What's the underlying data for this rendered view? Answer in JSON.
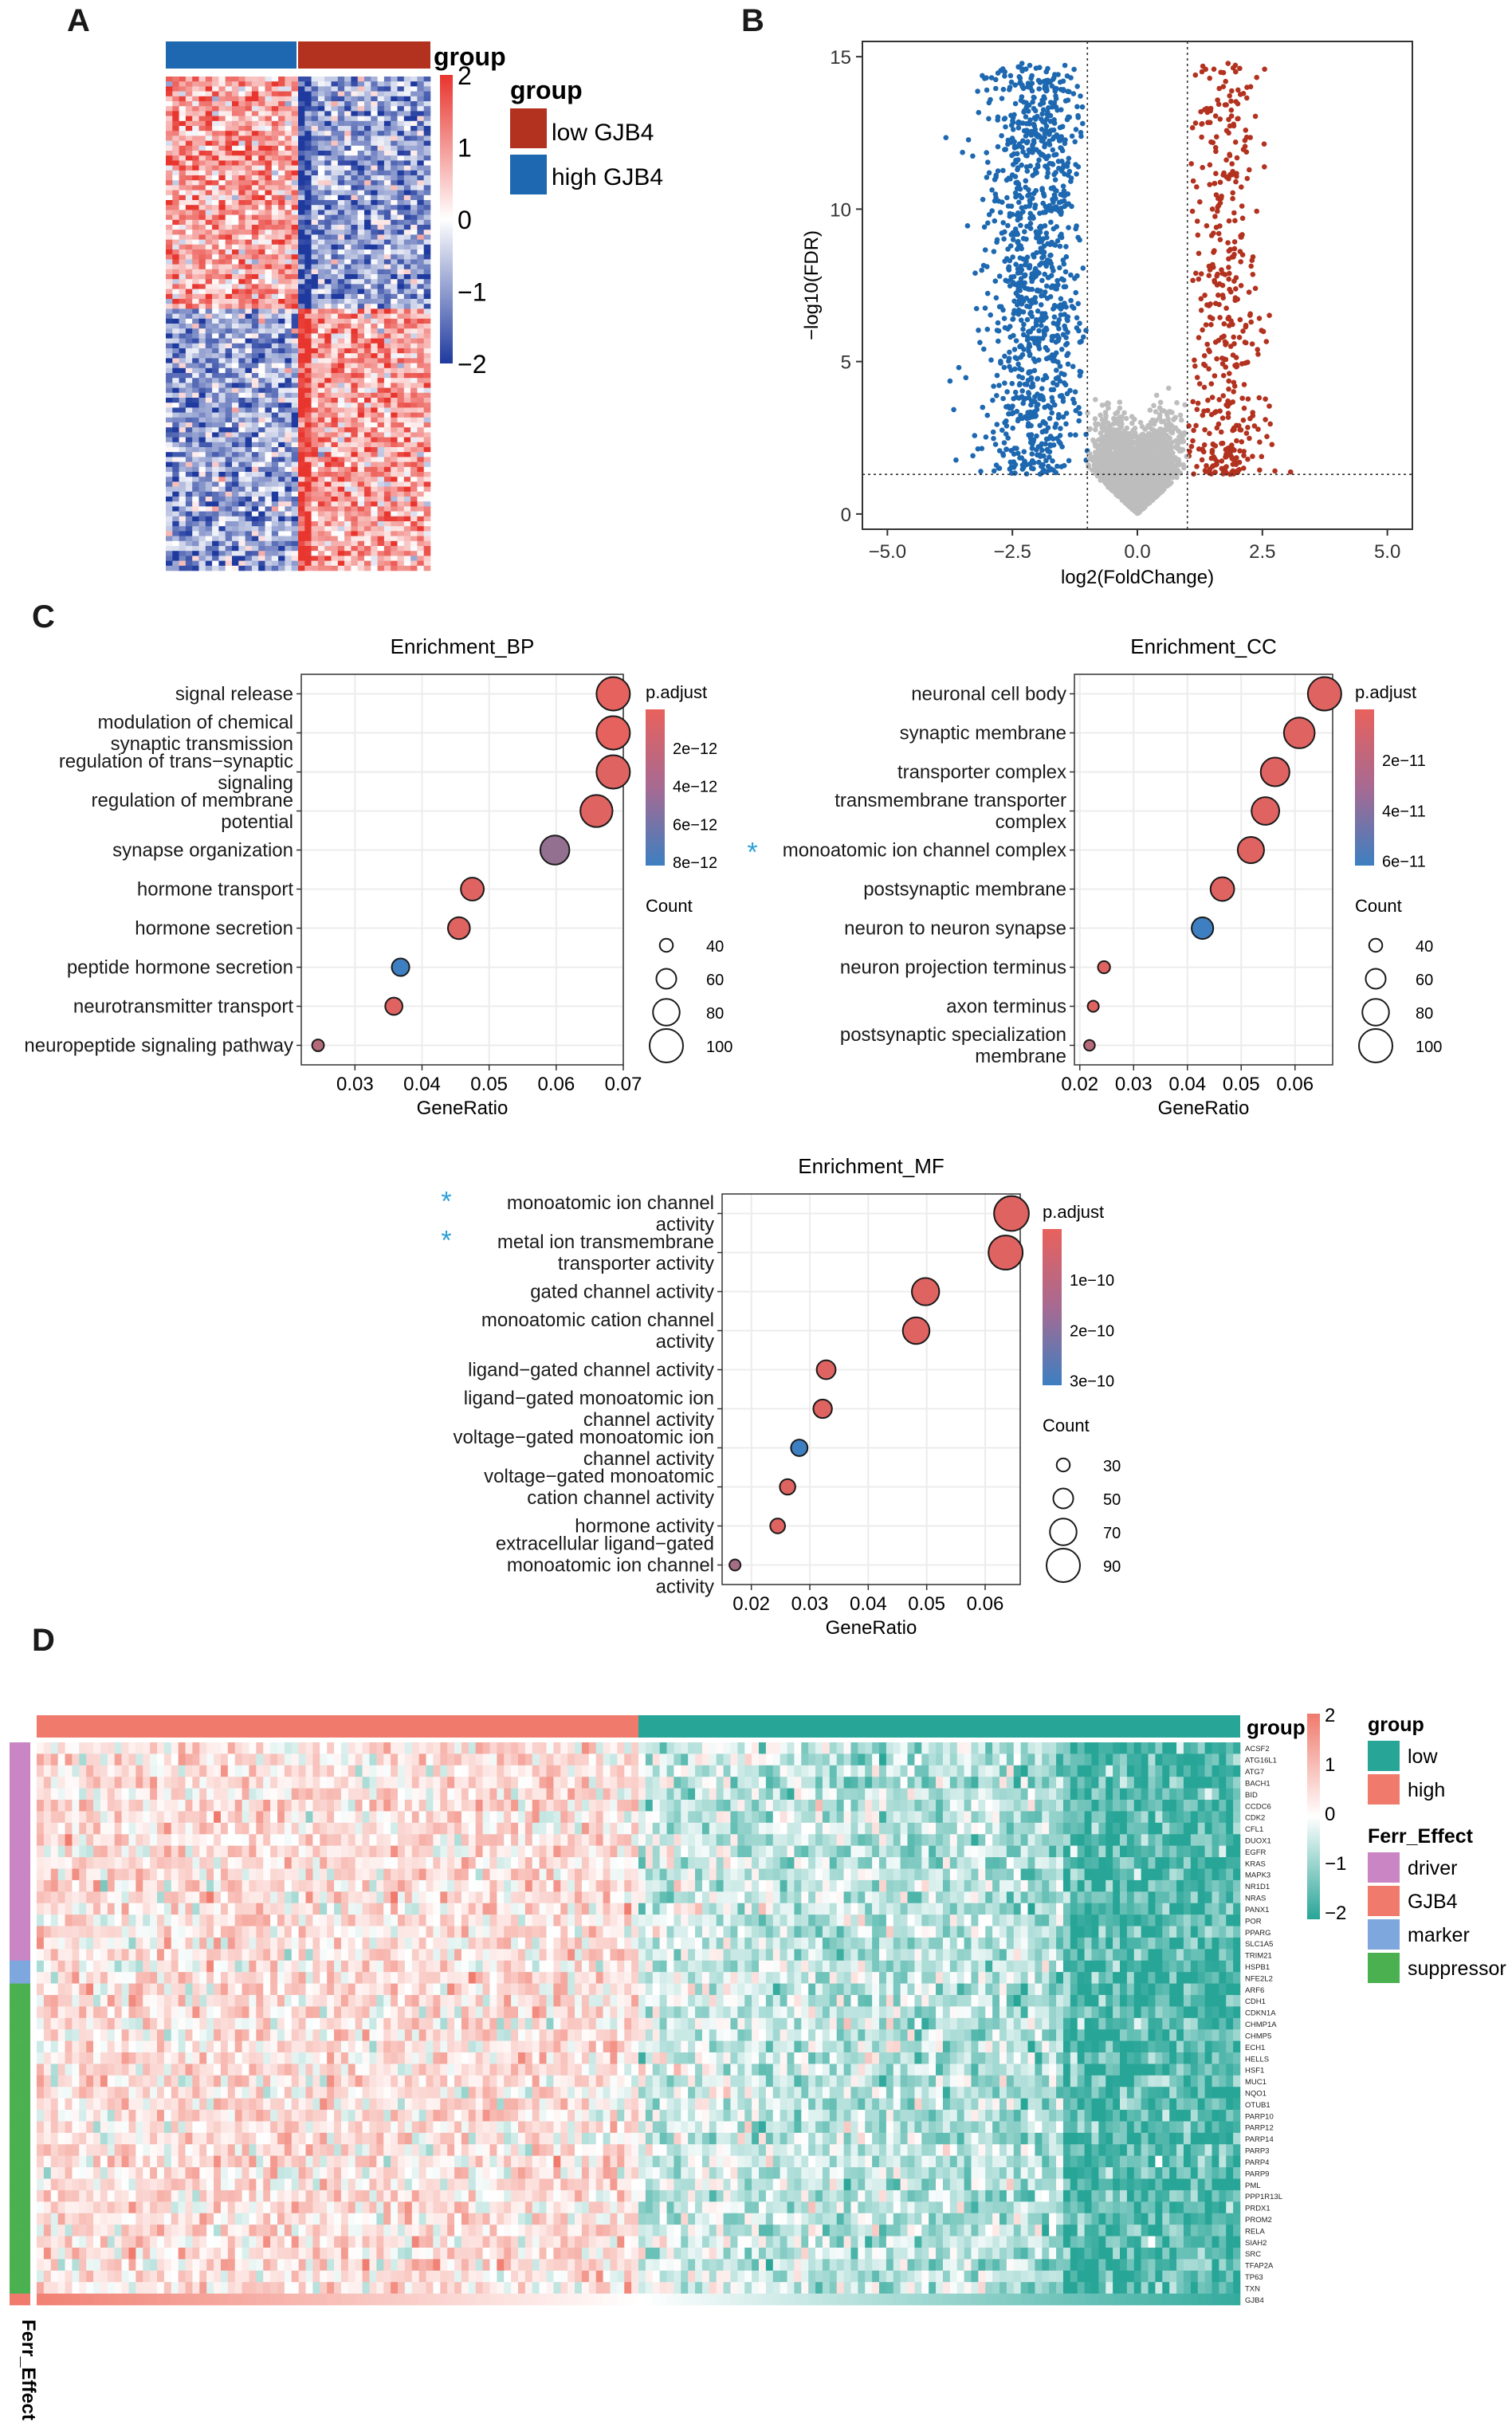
{
  "panel_letters": {
    "a": "A",
    "b": "B",
    "c": "C",
    "d": "D"
  },
  "colors": {
    "heat_red": "#e8352e",
    "heat_blue": "#1f3a9e",
    "volcano_up": "#b2321f",
    "volcano_down": "#1d68b0",
    "volcano_ns": "#bdbdbd",
    "teal": "#27a597",
    "salmon": "#f07a6c",
    "enrich_red": "#e8615c",
    "enrich_blue": "#3d7fc1",
    "driver": "#c985c4",
    "marker": "#7ea7dd",
    "suppressor": "#4bb04f",
    "star": "#2aa0d8"
  },
  "chart_data": [
    {
      "id": "heatmap_A",
      "type": "heatmap",
      "annotation_title": "group",
      "legend_title": "group",
      "legend_items": [
        "low GJB4",
        "high GJB4"
      ],
      "colorbar_ticks": [
        "2",
        "1",
        "0",
        "−1",
        "−2"
      ],
      "colorbar_range": [
        -2,
        2
      ]
    },
    {
      "id": "volcano_B",
      "type": "scatter",
      "xlabel": "log2(FoldChange)",
      "ylabel": "−log10(FDR)",
      "xlim": [
        -5.5,
        5.5
      ],
      "ylim": [
        -0.5,
        15.5
      ],
      "xticks": [
        -5.0,
        -2.5,
        0.0,
        2.5,
        5.0
      ],
      "xtick_labels": [
        "−5.0",
        "−2.5",
        "0.0",
        "2.5",
        "5.0"
      ],
      "yticks": [
        0,
        5,
        10,
        15
      ],
      "ytick_labels": [
        "0",
        "5",
        "10",
        "15"
      ],
      "fc_threshold": 1,
      "fdr_threshold": 1.3,
      "series": [
        {
          "name": "down",
          "color_key": "volcano_down"
        },
        {
          "name": "not significant",
          "color_key": "volcano_ns"
        },
        {
          "name": "up",
          "color_key": "volcano_up"
        }
      ]
    },
    {
      "id": "enrich_BP",
      "type": "scatter",
      "title": "Enrichment_BP",
      "xlabel": "GeneRatio",
      "xlim": [
        0.022,
        0.07
      ],
      "xticks": [
        0.03,
        0.04,
        0.05,
        0.06,
        0.07
      ],
      "xtick_labels": [
        "0.03",
        "0.04",
        "0.05",
        "0.06",
        "0.07"
      ],
      "categories": [
        [
          "signal release"
        ],
        [
          "modulation of chemical",
          "synaptic transmission"
        ],
        [
          "regulation of trans−synaptic",
          "signaling"
        ],
        [
          "regulation of membrane",
          "potential"
        ],
        [
          "synapse organization"
        ],
        [
          "hormone transport"
        ],
        [
          "hormone secretion"
        ],
        [
          "peptide hormone secretion"
        ],
        [
          "neurotransmitter transport"
        ],
        [
          "neuropeptide signaling pathway"
        ]
      ],
      "gene_ratio": [
        0.0685,
        0.0685,
        0.0685,
        0.066,
        0.0598,
        0.0475,
        0.0455,
        0.0368,
        0.0358,
        0.0245
      ],
      "count": [
        100,
        100,
        100,
        96,
        87,
        69,
        66,
        53,
        52,
        36
      ],
      "p_adjust_color": [
        0.02,
        0.02,
        0.05,
        0.05,
        0.5,
        0.05,
        0.05,
        1.0,
        0.05,
        0.3
      ],
      "stars": [
        false,
        false,
        false,
        false,
        false,
        false,
        false,
        false,
        false,
        false
      ],
      "padj_title": "p.adjust",
      "padj_ticks": [
        "2e−12",
        "4e−12",
        "6e−12",
        "8e−12"
      ],
      "count_title": "Count",
      "count_ticks": [
        40,
        60,
        80,
        100
      ]
    },
    {
      "id": "enrich_CC",
      "type": "scatter",
      "title": "Enrichment_CC",
      "xlabel": "GeneRatio",
      "xlim": [
        0.019,
        0.067
      ],
      "xticks": [
        0.02,
        0.03,
        0.04,
        0.05,
        0.06
      ],
      "xtick_labels": [
        "0.02",
        "0.03",
        "0.04",
        "0.05",
        "0.06"
      ],
      "categories": [
        [
          "neuronal cell body"
        ],
        [
          "synaptic membrane"
        ],
        [
          "transporter complex"
        ],
        [
          "transmembrane transporter",
          "complex"
        ],
        [
          "monoatomic ion channel complex"
        ],
        [
          "postsynaptic membrane"
        ],
        [
          "neuron to neuron synapse"
        ],
        [
          "neuron projection terminus"
        ],
        [
          "axon terminus"
        ],
        [
          "postsynaptic specialization",
          "membrane"
        ]
      ],
      "gene_ratio": [
        0.0655,
        0.0608,
        0.0563,
        0.0545,
        0.0518,
        0.0465,
        0.0428,
        0.0245,
        0.0225,
        0.0218
      ],
      "count": [
        100,
        92,
        86,
        83,
        79,
        71,
        65,
        37,
        34,
        33
      ],
      "p_adjust_color": [
        0.05,
        0.05,
        0.05,
        0.05,
        0.05,
        0.05,
        1.0,
        0.05,
        0.05,
        0.3
      ],
      "stars": [
        false,
        false,
        false,
        false,
        true,
        false,
        false,
        false,
        false,
        false
      ],
      "padj_title": "p.adjust",
      "padj_ticks": [
        "2e−11",
        "4e−11",
        "6e−11"
      ],
      "count_title": "Count",
      "count_ticks": [
        40,
        60,
        80,
        100
      ]
    },
    {
      "id": "enrich_MF",
      "type": "scatter",
      "title": "Enrichment_MF",
      "xlabel": "GeneRatio",
      "xlim": [
        0.015,
        0.066
      ],
      "xticks": [
        0.02,
        0.03,
        0.04,
        0.05,
        0.06
      ],
      "xtick_labels": [
        "0.02",
        "0.03",
        "0.04",
        "0.05",
        "0.06"
      ],
      "categories": [
        [
          "monoatomic ion channel",
          "activity"
        ],
        [
          "metal ion transmembrane",
          "transporter activity"
        ],
        [
          "gated channel activity"
        ],
        [
          "monoatomic cation channel",
          "activity"
        ],
        [
          "ligand−gated channel activity"
        ],
        [
          "ligand−gated monoatomic ion",
          "channel activity"
        ],
        [
          "voltage−gated monoatomic ion",
          "channel activity"
        ],
        [
          "voltage−gated monoatomic",
          "cation channel activity"
        ],
        [
          "hormone activity"
        ],
        [
          "extracellular ligand−gated",
          "monoatomic ion channel",
          "activity"
        ]
      ],
      "gene_ratio": [
        0.0645,
        0.0635,
        0.0498,
        0.0482,
        0.0328,
        0.0322,
        0.0282,
        0.0262,
        0.0245,
        0.0172
      ],
      "count": [
        94,
        92,
        72,
        70,
        47,
        46,
        40,
        37,
        35,
        24
      ],
      "p_adjust_color": [
        0.05,
        0.05,
        0.05,
        0.05,
        0.05,
        0.05,
        1.0,
        0.05,
        0.05,
        0.4
      ],
      "stars": [
        true,
        true,
        false,
        false,
        false,
        false,
        false,
        false,
        false,
        false
      ],
      "padj_title": "p.adjust",
      "padj_ticks": [
        "1e−10",
        "2e−10",
        "3e−10"
      ],
      "count_title": "Count",
      "count_ticks": [
        30,
        50,
        70,
        90
      ]
    },
    {
      "id": "heatmap_D",
      "type": "heatmap",
      "annotation_title": "group",
      "group_legend_title": "group",
      "group_legend_items": [
        {
          "label": "low",
          "color_key": "teal"
        },
        {
          "label": "high",
          "color_key": "salmon"
        }
      ],
      "ferr_legend_title": "Ferr_Effect",
      "ferr_legend_items": [
        {
          "label": "driver",
          "color_key": "driver"
        },
        {
          "label": "GJB4",
          "color_key": "salmon"
        },
        {
          "label": "marker",
          "color_key": "marker"
        },
        {
          "label": "suppressor",
          "color_key": "suppressor"
        }
      ],
      "row_annotation_label": "Ferr_Effect",
      "colorbar_ticks": [
        "2",
        "1",
        "0",
        "−1",
        "−2"
      ],
      "colorbar_range": [
        -2,
        2
      ],
      "genes": [
        "ACSF2",
        "ATG16L1",
        "ATG7",
        "BACH1",
        "BID",
        "CCDC6",
        "CDK2",
        "CFL1",
        "DUOX1",
        "EGFR",
        "KRAS",
        "MAPK3",
        "NR1D1",
        "NRAS",
        "PANX1",
        "POR",
        "PPARG",
        "SLC1A5",
        "TRIM21",
        "HSPB1",
        "NFE2L2",
        "ARF6",
        "CDH1",
        "CDKN1A",
        "CHMP1A",
        "CHMP5",
        "ECH1",
        "HELLS",
        "HSF1",
        "MUC1",
        "NQO1",
        "OTUB1",
        "PARP10",
        "PARP12",
        "PARP14",
        "PARP3",
        "PARP4",
        "PARP9",
        "PML",
        "PPP1R13L",
        "PRDX1",
        "PROM2",
        "RELA",
        "SIAH2",
        "SRC",
        "TFAP2A",
        "TP63",
        "TXN",
        "GJB4"
      ],
      "gene_effect": [
        "driver",
        "driver",
        "driver",
        "driver",
        "driver",
        "driver",
        "driver",
        "driver",
        "driver",
        "driver",
        "driver",
        "driver",
        "driver",
        "driver",
        "driver",
        "driver",
        "driver",
        "driver",
        "driver",
        "marker",
        "marker",
        "suppressor",
        "suppressor",
        "suppressor",
        "suppressor",
        "suppressor",
        "suppressor",
        "suppressor",
        "suppressor",
        "suppressor",
        "suppressor",
        "suppressor",
        "suppressor",
        "suppressor",
        "suppressor",
        "suppressor",
        "suppressor",
        "suppressor",
        "suppressor",
        "suppressor",
        "suppressor",
        "suppressor",
        "suppressor",
        "suppressor",
        "suppressor",
        "suppressor",
        "suppressor",
        "suppressor",
        "GJB4"
      ]
    }
  ]
}
